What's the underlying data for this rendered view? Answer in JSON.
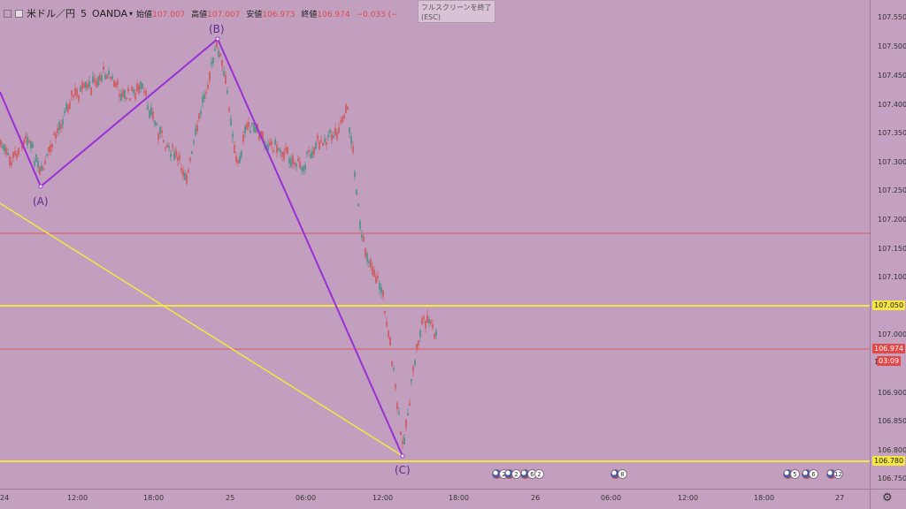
{
  "legend": {
    "symbol": "米ドル／円",
    "interval": "5",
    "source": "OANDA",
    "open_label": "始値",
    "open": "107.007",
    "high_label": "高値",
    "high": "107.007",
    "low_label": "安値",
    "low": "106.973",
    "close_label": "終値",
    "close": "106.974",
    "change": "−0.033 (−"
  },
  "fullscreen_exit": {
    "label": "フルスクリーンを終了",
    "hint": "(ESC)"
  },
  "price_axis": {
    "ticks": [
      "107.550",
      "107.500",
      "107.450",
      "107.400",
      "107.350",
      "107.300",
      "107.250",
      "107.200",
      "107.150",
      "107.100",
      "107.000",
      "106.900",
      "106.850",
      "106.800",
      "106.750"
    ],
    "level_upper": "107.050",
    "level_lower": "106.780",
    "current_price": "106.974",
    "countdown": "03:09",
    "partial": "1"
  },
  "time_axis": {
    "ticks": [
      "24",
      "12:00",
      "18:00",
      "25",
      "06:00",
      "12:00",
      "18:00",
      "26",
      "06:00",
      "12:00",
      "18:00",
      "27"
    ]
  },
  "waves": {
    "A": "(A)",
    "B": "(B)",
    "C": "(C)"
  },
  "events": [
    {
      "count": "2"
    },
    {
      "count": "2"
    },
    {
      "count": "6"
    },
    {
      "count": "2"
    },
    {
      "count": "8"
    },
    {
      "count": "5"
    },
    {
      "count": "6"
    },
    {
      "count": "12"
    }
  ],
  "colors": {
    "background": "#c29fbf",
    "up": "#3a8c7a",
    "down": "#d14b4b",
    "wave_line": "#9a2fd6",
    "level_line": "#f5e642",
    "red_line": "#d65a5a"
  },
  "price_scale": {
    "min": 106.75,
    "max": 107.55
  }
}
